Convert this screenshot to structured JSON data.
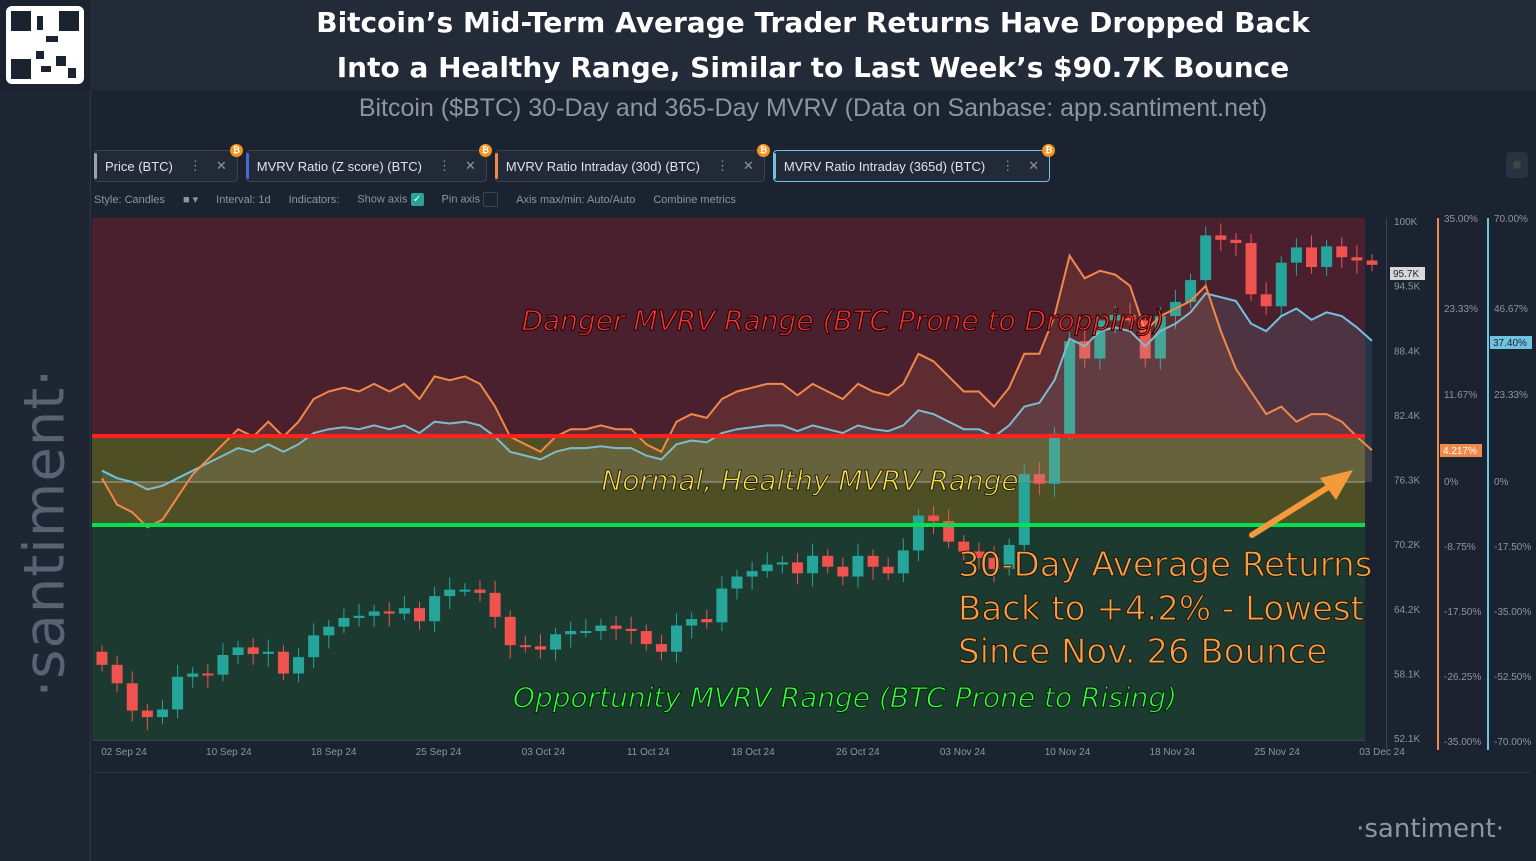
{
  "title": {
    "line1": "Bitcoin’s Mid-Term Average Trader Returns Have Dropped Back",
    "line2": "Into a Healthy Range, Similar to Last Week’s $90.7K Bounce"
  },
  "subtitle": "Bitcoin ($BTC) 30-Day and 365-Day MVRV (Data on Sanbase: app.santiment.net)",
  "brand_vertical": "·santiment·",
  "brand_footer": "·santiment·",
  "tabs": [
    {
      "label": "Price (BTC)",
      "color": "#9aa3b2"
    },
    {
      "label": "MVRV Ratio (Z score) (BTC)",
      "color": "#4a66d8"
    },
    {
      "label": "MVRV Ratio Intraday (30d) (BTC)",
      "color": "#f0894a"
    },
    {
      "label": "MVRV Ratio Intraday (365d) (BTC)",
      "color": "#6fc3e0"
    }
  ],
  "tab_icons": {
    "menu": "⋮",
    "close": "✕",
    "coin": "₿"
  },
  "toolbar": {
    "style": "Style: Candles",
    "interval": "Interval: 1d",
    "indicators": "Indicators:",
    "show_axis": "Show axis",
    "pin_axis": "Pin axis",
    "axis_maxmin": "Axis max/min: Auto/Auto",
    "combine": "Combine metrics"
  },
  "chart_data": {
    "type": "line",
    "x_ticks": [
      "02 Sep 24",
      "10 Sep 24",
      "18 Sep 24",
      "25 Sep 24",
      "03 Oct 24",
      "11 Oct 24",
      "18 Oct 24",
      "26 Oct 24",
      "03 Nov 24",
      "10 Nov 24",
      "18 Nov 24",
      "25 Nov 24",
      "03 Dec 24"
    ],
    "price_axis": [
      "100K",
      "94.5K",
      "88.4K",
      "82.4K",
      "76.3K",
      "70.2K",
      "64.2K",
      "58.1K",
      "52.1K"
    ],
    "price_range": [
      52100,
      100000
    ],
    "mvrv30_axis": [
      "35.00%",
      "23.33%",
      "11.67%",
      "0%",
      "-8.75%",
      "-17.50%",
      "-26.25%",
      "-35.00%"
    ],
    "mvrv365_axis": [
      "70.00%",
      "46.67%",
      "23.33%",
      "0%",
      "-17.50%",
      "-35.00%",
      "-52.50%",
      "-70.00%"
    ],
    "last_price_label": "95.7K",
    "last_mvrv30_label": "4.217%",
    "last_mvrv365_label": "37.40%",
    "candles_close": [
      59000,
      57300,
      54800,
      54200,
      54900,
      57900,
      58200,
      58100,
      59900,
      60600,
      60000,
      60200,
      58200,
      59700,
      61700,
      62500,
      63300,
      63500,
      63900,
      63700,
      64200,
      63000,
      65300,
      65900,
      65900,
      65600,
      63400,
      60800,
      60700,
      60400,
      61800,
      62100,
      62100,
      62600,
      62300,
      62100,
      60900,
      60200,
      62600,
      63200,
      62900,
      66000,
      67100,
      67600,
      68200,
      68400,
      67400,
      69000,
      68000,
      67100,
      69000,
      68000,
      67400,
      69500,
      72700,
      72200,
      70300,
      69400,
      68800,
      67800,
      70000,
      76500,
      75600,
      80200,
      88700,
      87100,
      90600,
      91100,
      90600,
      87100,
      91000,
      92300,
      94300,
      98400,
      98000,
      97700,
      93000,
      91900,
      95900,
      97300,
      95500,
      97400,
      96400,
      96100,
      95700
    ],
    "series_mvrv30_pct": [
      0.5,
      -3,
      -4,
      -6,
      -5,
      -2,
      1,
      3,
      5,
      7,
      6,
      8,
      6,
      8,
      11,
      12,
      12.5,
      12,
      13,
      12,
      13,
      11,
      14,
      13.5,
      14,
      13,
      10,
      6,
      5,
      4,
      6,
      7,
      7,
      7.5,
      7,
      7,
      5,
      4,
      8,
      9,
      8.5,
      11,
      12,
      12.5,
      13,
      13,
      11.5,
      13,
      12,
      11,
      13,
      12,
      11.5,
      13,
      17,
      16,
      14,
      12,
      12,
      10,
      12.5,
      17,
      17,
      22,
      30,
      27,
      28,
      27.5,
      26,
      20,
      22,
      23,
      24,
      26,
      20,
      15,
      12,
      9,
      10,
      8,
      9,
      9,
      8,
      6,
      4.2
    ],
    "series_mvrv365_pct": [
      3,
      1,
      0,
      -2,
      -1,
      1,
      3,
      5,
      7,
      9,
      8,
      10,
      8,
      10,
      13,
      14,
      14.5,
      14,
      15,
      14,
      15,
      13,
      16,
      15.5,
      16,
      15,
      12,
      8,
      7,
      6,
      8,
      9,
      9,
      9.5,
      9,
      9,
      7,
      6,
      10,
      11,
      10.5,
      13,
      14,
      14.5,
      15,
      15,
      13.5,
      15,
      14,
      13,
      15,
      14,
      13.5,
      15,
      19,
      18,
      16,
      14,
      14,
      12,
      15,
      20,
      21,
      27,
      38,
      36,
      40,
      41,
      40,
      36,
      40,
      42,
      45,
      50,
      49,
      48,
      42,
      40,
      44,
      46,
      43,
      45,
      44,
      41,
      37.4
    ],
    "annotations": {
      "danger": "Danger MVRV Range (BTC Prone to Dropping)",
      "normal": "Normal, Healthy MVRV Range",
      "opportunity": "Opportunity MVRV Range (BTC Prone to Rising)",
      "callout_line1": "30-Day Average Returns",
      "callout_line2": "Back to +4.2% - Lowest",
      "callout_line3": "Since Nov. 26 Bounce"
    },
    "zone_colors": {
      "danger": "#4a1f2e",
      "normal": "#4f4f25",
      "opportunity": "#1c3a30"
    },
    "line_colors": {
      "red": "#ff2020",
      "green": "#00e050",
      "mvrv30": "#f0894a",
      "mvrv365": "#6fc3e0",
      "up": "#26a69a",
      "down": "#ef5350"
    }
  }
}
